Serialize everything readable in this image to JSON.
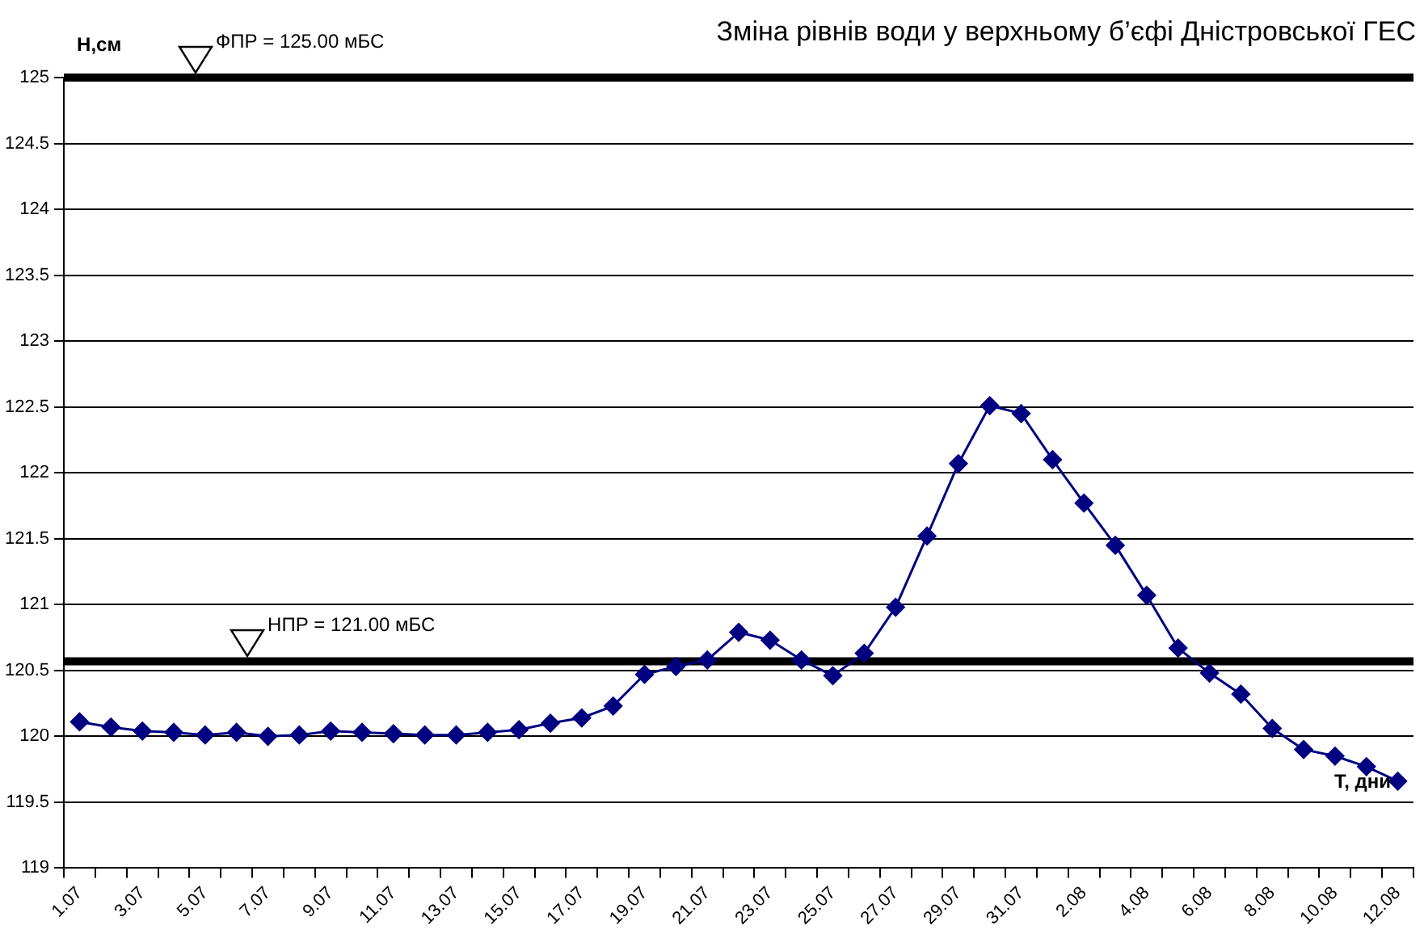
{
  "chart_data": {
    "type": "line",
    "title": "Зміна рівнів води у верхньому б’єфі Дністровської ГЕС",
    "xlabel": "Т, дни",
    "ylabel": "Н,см",
    "categories": [
      "1.07",
      null,
      "3.07",
      null,
      "5.07",
      null,
      "7.07",
      null,
      "9.07",
      null,
      "11.07",
      null,
      "13.07",
      null,
      "15.07",
      null,
      "17.07",
      null,
      "19.07",
      null,
      "21.07",
      null,
      "23.07",
      null,
      "25.07",
      null,
      "27.07",
      null,
      "29.07",
      null,
      "31.07",
      null,
      "2.08",
      null,
      "4.08",
      null,
      "6.08",
      null,
      "8.08",
      null,
      "10.08",
      null,
      "12.08"
    ],
    "series": [
      {
        "color": "#000080",
        "values": [
          120.11,
          120.07,
          120.04,
          120.03,
          120.01,
          120.03,
          120.0,
          120.01,
          120.04,
          120.03,
          120.02,
          120.01,
          120.01,
          120.03,
          120.05,
          120.1,
          120.14,
          120.23,
          120.47,
          120.53,
          120.58,
          120.79,
          120.73,
          120.58,
          120.46,
          120.63,
          120.98,
          121.52,
          122.07,
          122.51,
          122.45,
          122.1,
          121.77,
          121.45,
          121.07,
          120.67,
          120.48,
          120.32,
          120.06,
          119.9,
          119.85,
          119.77,
          119.66
        ]
      }
    ],
    "ylim": [
      119,
      125
    ],
    "yticks": [
      119,
      119.5,
      120,
      120.5,
      121,
      121.5,
      122,
      122.5,
      123,
      123.5,
      124,
      124.5,
      125
    ],
    "grid": "y",
    "legend": false,
    "marker": "diamond",
    "line_style": "solid",
    "ref_lines": [
      {
        "axis": "y",
        "value": 125,
        "label": "ФПР = 125.00 мБС",
        "color": "#000000"
      },
      {
        "axis": "y",
        "value": 120.57,
        "color": "#000000"
      }
    ],
    "annotations": [
      "НПР = 121.00 мБС"
    ]
  }
}
